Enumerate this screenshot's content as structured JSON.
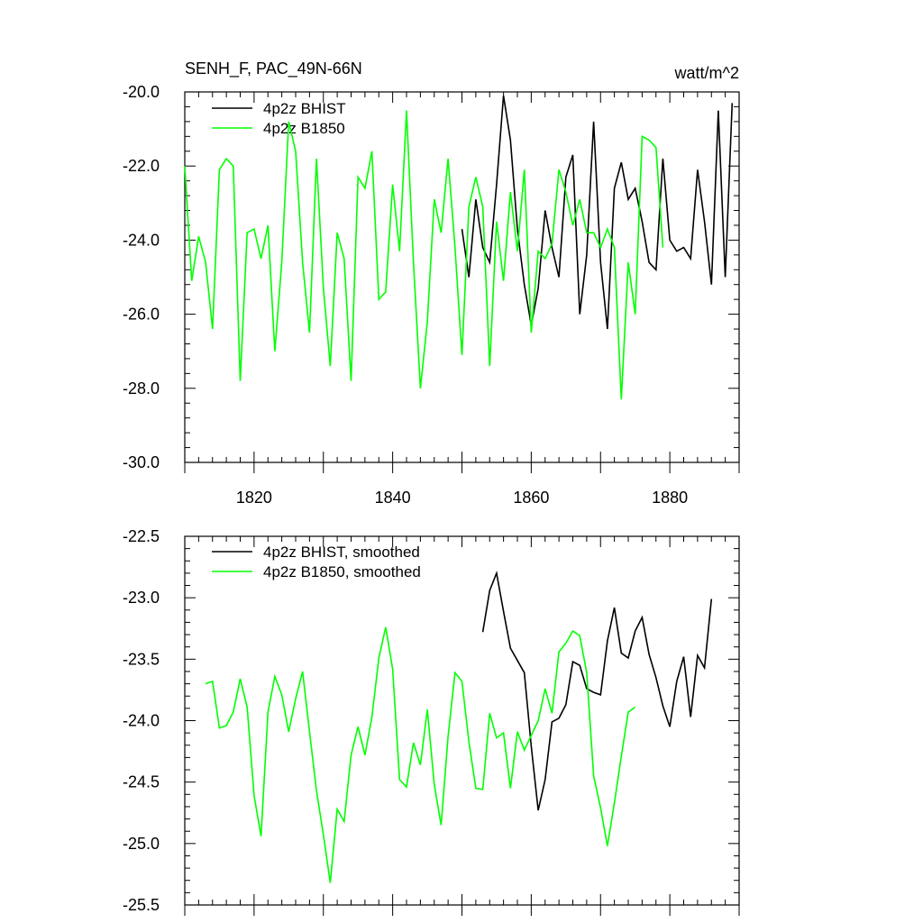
{
  "chart_data": [
    {
      "type": "line",
      "title": "SENH_F, PAC_49N-66N",
      "units": "watt/m^2",
      "xlim": [
        1810,
        1890
      ],
      "ylim": [
        -30.0,
        -20.0
      ],
      "xticks": [
        1820,
        1840,
        1860,
        1880
      ],
      "xtick_labels": [
        "1820",
        "1840",
        "1860",
        "1880"
      ],
      "yticks": [
        -30.0,
        -28.0,
        -26.0,
        -24.0,
        -22.0,
        -20.0
      ],
      "ytick_labels": [
        "-30.0",
        "-28.0",
        "-26.0",
        "-24.0",
        "-22.0",
        "-20.0"
      ],
      "legend_position": "top-left",
      "series": [
        {
          "name": "4p2z BHIST",
          "color": "#000000",
          "x": [
            1850,
            1851,
            1852,
            1853,
            1854,
            1855,
            1856,
            1857,
            1858,
            1859,
            1860,
            1861,
            1862,
            1863,
            1864,
            1865,
            1866,
            1867,
            1868,
            1869,
            1870,
            1871,
            1872,
            1873,
            1874,
            1875,
            1876,
            1877,
            1878,
            1879,
            1880,
            1881,
            1882,
            1883,
            1884,
            1885,
            1886,
            1887,
            1888,
            1889
          ],
          "y": [
            -23.7,
            -25.0,
            -22.9,
            -24.2,
            -24.6,
            -22.5,
            -20.1,
            -21.3,
            -23.7,
            -25.2,
            -26.3,
            -25.3,
            -23.2,
            -24.2,
            -25.0,
            -22.3,
            -21.7,
            -26.0,
            -24.4,
            -20.8,
            -24.6,
            -26.4,
            -22.6,
            -21.9,
            -22.9,
            -22.6,
            -23.5,
            -24.6,
            -24.8,
            -21.8,
            -24.0,
            -24.3,
            -24.2,
            -24.5,
            -22.1,
            -23.5,
            -25.2,
            -20.5,
            -25.0,
            -20.3
          ]
        },
        {
          "name": "4p2z B1850",
          "color": "#00ff00",
          "x": [
            1810,
            1811,
            1812,
            1813,
            1814,
            1815,
            1816,
            1817,
            1818,
            1819,
            1820,
            1821,
            1822,
            1823,
            1824,
            1825,
            1826,
            1827,
            1828,
            1829,
            1830,
            1831,
            1832,
            1833,
            1834,
            1835,
            1836,
            1837,
            1838,
            1839,
            1840,
            1841,
            1842,
            1843,
            1844,
            1845,
            1846,
            1847,
            1848,
            1849,
            1850,
            1851,
            1852,
            1853,
            1854,
            1855,
            1856,
            1857,
            1858,
            1859,
            1860,
            1861,
            1862,
            1863,
            1864,
            1865,
            1866,
            1867,
            1868,
            1869,
            1870,
            1871,
            1872,
            1873,
            1874,
            1875,
            1876,
            1877,
            1878,
            1879
          ],
          "y": [
            -22.0,
            -25.1,
            -23.9,
            -24.6,
            -26.4,
            -22.1,
            -21.8,
            -22.0,
            -27.8,
            -23.8,
            -23.7,
            -24.5,
            -23.6,
            -27.0,
            -24.6,
            -20.8,
            -21.6,
            -24.6,
            -26.5,
            -21.8,
            -25.3,
            -27.4,
            -23.8,
            -24.5,
            -27.8,
            -22.3,
            -22.6,
            -21.6,
            -25.6,
            -25.4,
            -22.5,
            -24.3,
            -20.5,
            -24.6,
            -28.0,
            -26.2,
            -22.9,
            -23.8,
            -21.8,
            -24.2,
            -27.1,
            -23.1,
            -22.3,
            -23.1,
            -27.4,
            -23.5,
            -25.1,
            -22.7,
            -24.3,
            -22.1,
            -26.5,
            -24.3,
            -24.5,
            -24.1,
            -22.1,
            -22.7,
            -23.6,
            -22.9,
            -23.8,
            -23.8,
            -24.2,
            -23.7,
            -24.2,
            -28.3,
            -24.6,
            -26.0,
            -21.2,
            -21.3,
            -21.5,
            -24.2
          ]
        }
      ]
    },
    {
      "type": "line",
      "title": "",
      "xlim": [
        1810,
        1890
      ],
      "ylim": [
        -25.5,
        -22.5
      ],
      "xticks": [
        1820,
        1840,
        1860,
        1880
      ],
      "yticks": [
        -25.5,
        -25.0,
        -24.5,
        -24.0,
        -23.5,
        -23.0,
        -22.5
      ],
      "ytick_labels": [
        "-25.5",
        "-25.0",
        "-24.5",
        "-24.0",
        "-23.5",
        "-23.0",
        "-22.5"
      ],
      "legend_position": "top-left",
      "series": [
        {
          "name": "4p2z BHIST, smoothed",
          "color": "#000000",
          "x": [
            1853,
            1854,
            1855,
            1856,
            1857,
            1858,
            1859,
            1860,
            1861,
            1862,
            1863,
            1864,
            1865,
            1866,
            1867,
            1868,
            1869,
            1870,
            1871,
            1872,
            1873,
            1874,
            1875,
            1876,
            1877,
            1878,
            1879,
            1880,
            1881,
            1882,
            1883,
            1884,
            1885,
            1886
          ],
          "y": [
            -23.28,
            -22.94,
            -22.8,
            -23.11,
            -23.41,
            -23.51,
            -23.61,
            -24.21,
            -24.73,
            -24.48,
            -24.01,
            -23.98,
            -23.87,
            -23.52,
            -23.55,
            -23.74,
            -23.77,
            -23.79,
            -23.35,
            -23.08,
            -23.45,
            -23.49,
            -23.27,
            -23.16,
            -23.46,
            -23.65,
            -23.88,
            -24.05,
            -23.68,
            -23.48,
            -23.97,
            -23.47,
            -23.57,
            -23.01
          ]
        },
        {
          "name": "4p2z B1850, smoothed",
          "color": "#00ff00",
          "x": [
            1813,
            1814,
            1815,
            1816,
            1817,
            1818,
            1819,
            1820,
            1821,
            1822,
            1823,
            1824,
            1825,
            1826,
            1827,
            1828,
            1829,
            1830,
            1831,
            1832,
            1833,
            1834,
            1835,
            1836,
            1837,
            1838,
            1839,
            1840,
            1841,
            1842,
            1843,
            1844,
            1845,
            1846,
            1847,
            1848,
            1849,
            1850,
            1851,
            1852,
            1853,
            1854,
            1855,
            1856,
            1857,
            1858,
            1859,
            1860,
            1861,
            1862,
            1863,
            1864,
            1865,
            1866,
            1867,
            1868,
            1869,
            1870,
            1871,
            1872,
            1873,
            1874,
            1875,
            1876
          ],
          "y": [
            -23.7,
            -23.68,
            -24.06,
            -24.04,
            -23.93,
            -23.66,
            -23.89,
            -24.61,
            -24.94,
            -23.93,
            -23.64,
            -23.79,
            -24.09,
            -23.82,
            -23.6,
            -24.09,
            -24.57,
            -24.93,
            -25.32,
            -24.72,
            -24.82,
            -24.28,
            -24.05,
            -24.28,
            -23.97,
            -23.49,
            -23.24,
            -23.58,
            -24.48,
            -24.54,
            -24.18,
            -24.36,
            -23.91,
            -24.52,
            -24.85,
            -24.13,
            -23.61,
            -23.68,
            -24.17,
            -24.55,
            -24.56,
            -23.94,
            -24.14,
            -24.1,
            -24.55,
            -24.09,
            -24.24,
            -24.12,
            -24.0,
            -23.74,
            -23.94,
            -23.44,
            -23.37,
            -23.27,
            -23.31,
            -23.61,
            -24.45,
            -24.71,
            -25.02,
            -24.67,
            -24.29,
            -23.93,
            -23.89,
            null
          ]
        }
      ]
    }
  ]
}
